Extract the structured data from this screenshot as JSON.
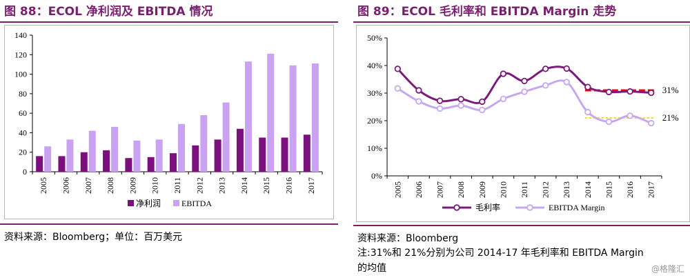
{
  "left": {
    "title": "图 88：ECOL 净利润及 EBITDA 情况",
    "source": "资料来源：Bloomberg；单位：百万美元"
  },
  "right": {
    "title": "图 89：ECOL 毛利率和 EBITDA Margin 走势",
    "source": "资料来源：Bloomberg",
    "note_line1": "注:31%和 21%分别为公司 2014-17 年毛利率和 EBITDA Margin",
    "note_line2": "的均值"
  },
  "watermark": "@格隆汇",
  "colors": {
    "accent": "#7a1f6e",
    "net_profit": "#7b0f7e",
    "ebitda": "#c9a3f2",
    "gross_margin_line": "#7b1a7b",
    "ebitda_margin_line": "#c6a8f0",
    "avg_gross": "#ff0000",
    "avg_ebitda": "#f2c200"
  },
  "chart_data": [
    {
      "type": "bar",
      "categories": [
        "2005",
        "2006",
        "2007",
        "2008",
        "2009",
        "2010",
        "2011",
        "2012",
        "2013",
        "2014",
        "2015",
        "2016",
        "2017"
      ],
      "series": [
        {
          "name": "净利润",
          "values": [
            16,
            16,
            20,
            22,
            14,
            15,
            19,
            27,
            33,
            44,
            35,
            35,
            38
          ]
        },
        {
          "name": "EBITDA",
          "values": [
            26,
            33,
            42,
            46,
            32,
            33,
            49,
            58,
            71,
            113,
            121,
            109,
            111
          ]
        }
      ],
      "ylim": [
        0,
        140
      ],
      "yticks": [
        "0",
        "20",
        "40",
        "60",
        "80",
        "100",
        "120",
        "140"
      ],
      "legend": "bottom"
    },
    {
      "type": "line",
      "categories": [
        "2005",
        "2006",
        "2007",
        "2008",
        "2009",
        "2010",
        "2011",
        "2012",
        "2013",
        "2014",
        "2015",
        "2016",
        "2017"
      ],
      "series": [
        {
          "name": "毛利率",
          "values": [
            38.8,
            31.0,
            27.2,
            27.8,
            26.9,
            37.0,
            34.4,
            38.8,
            38.9,
            32.2,
            30.4,
            30.6,
            30.1
          ]
        },
        {
          "name": "EBITDA Margin",
          "values": [
            31.7,
            27.0,
            24.4,
            25.5,
            23.9,
            27.9,
            30.5,
            32.8,
            34.0,
            23.1,
            19.6,
            21.8,
            19.1
          ]
        }
      ],
      "averages": [
        {
          "label": "31%",
          "value": 31,
          "from": "2014",
          "to": "2017"
        },
        {
          "label": "21%",
          "value": 21,
          "from": "2014",
          "to": "2017"
        }
      ],
      "ylim": [
        0,
        50
      ],
      "yticks": [
        "0%",
        "10%",
        "20%",
        "30%",
        "40%",
        "50%"
      ],
      "legend": "bottom"
    }
  ]
}
